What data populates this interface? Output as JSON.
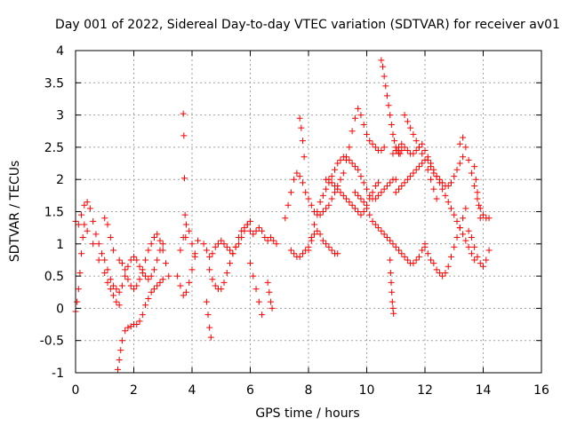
{
  "chart_data": {
    "type": "scatter",
    "title": "Day 001 of 2022, Sidereal Day-to-day VTEC variation (SDTVAR) for receiver av01",
    "xlabel": "GPS time / hours",
    "ylabel": "SDTVAR / TECUs",
    "xlim": [
      0,
      16
    ],
    "ylim": [
      -1,
      4
    ],
    "xticks": [
      0,
      2,
      4,
      6,
      8,
      10,
      12,
      14,
      16
    ],
    "yticks": [
      -1,
      -0.5,
      0,
      0.5,
      1,
      1.5,
      2,
      2.5,
      3,
      3.5,
      4
    ],
    "xtick_labels": [
      "0",
      "2",
      "4",
      "6",
      "8",
      "10",
      "12",
      "14",
      "16"
    ],
    "ytick_labels": [
      "-1",
      "-0.5",
      "0",
      "0.5",
      "1",
      "1.5",
      "2",
      "2.5",
      "3",
      "3.5",
      "4"
    ],
    "grid": true,
    "marker": "+",
    "color": "#ff0000",
    "series": [
      {
        "name": "SDTVAR",
        "tracks": [
          {
            "x": [
              0.0,
              0.1,
              0.2,
              0.3,
              0.4,
              0.5,
              0.6,
              0.7,
              0.8,
              0.9,
              1.0,
              1.1,
              1.2,
              1.3,
              1.4,
              1.5,
              1.6,
              1.7,
              1.8,
              1.9,
              2.0,
              2.1,
              2.2,
              2.3,
              2.4,
              2.5,
              2.6,
              2.7,
              2.8,
              2.9,
              3.0
            ],
            "y": [
              1.35,
              1.3,
              1.45,
              1.6,
              1.65,
              1.55,
              1.35,
              1.15,
              1.0,
              0.85,
              0.75,
              0.6,
              0.45,
              0.35,
              0.3,
              0.25,
              0.35,
              0.5,
              0.65,
              0.75,
              0.8,
              0.75,
              0.65,
              0.55,
              0.5,
              0.45,
              0.5,
              0.6,
              0.75,
              0.9,
              1.0
            ]
          },
          {
            "x": [
              0.0,
              0.05,
              0.1,
              0.15,
              0.2,
              0.25,
              0.3
            ],
            "y": [
              -0.05,
              0.1,
              0.3,
              0.55,
              0.85,
              1.1,
              1.3
            ]
          },
          {
            "x": [
              0.4,
              0.6,
              0.8,
              1.0,
              1.1,
              1.2,
              1.3,
              1.4,
              1.5
            ],
            "y": [
              1.2,
              1.0,
              0.75,
              0.55,
              0.4,
              0.3,
              0.2,
              0.1,
              0.05
            ]
          },
          {
            "x": [
              1.0,
              1.1,
              1.2,
              1.3
            ],
            "y": [
              1.4,
              1.3,
              1.1,
              0.9
            ]
          },
          {
            "x": [
              1.45,
              1.5,
              1.55,
              1.6,
              1.7,
              1.8,
              1.9,
              2.0,
              2.1,
              2.2,
              2.3,
              2.4,
              2.5,
              2.6,
              2.7,
              2.8,
              2.9,
              3.0
            ],
            "y": [
              -0.95,
              -0.8,
              -0.65,
              -0.5,
              -0.35,
              -0.3,
              -0.28,
              -0.25,
              -0.25,
              -0.2,
              -0.1,
              0.05,
              0.15,
              0.25,
              0.3,
              0.35,
              0.4,
              0.45
            ]
          },
          {
            "x": [
              1.5,
              1.6,
              1.7,
              1.8,
              1.9,
              2.0,
              2.1,
              2.2,
              2.3,
              2.4,
              2.5,
              2.6,
              2.7,
              2.8,
              2.9,
              3.0,
              3.1,
              3.2
            ],
            "y": [
              0.75,
              0.7,
              0.6,
              0.45,
              0.35,
              0.3,
              0.35,
              0.45,
              0.6,
              0.75,
              0.9,
              1.0,
              1.1,
              1.15,
              1.05,
              0.9,
              0.7,
              0.5
            ]
          },
          {
            "x": [
              3.5,
              3.6,
              3.7,
              3.8,
              3.9,
              4.0,
              4.1,
              4.2
            ],
            "y": [
              0.5,
              0.35,
              0.2,
              0.25,
              0.4,
              0.6,
              0.85,
              1.05
            ]
          },
          {
            "x": [
              3.7,
              3.72,
              3.74,
              3.76,
              3.78
            ],
            "y": [
              3.02,
              2.68,
              2.02,
              1.45,
              1.1
            ]
          },
          {
            "x": [
              3.6,
              3.7,
              3.8,
              3.9,
              4.0,
              4.1
            ],
            "y": [
              0.9,
              1.1,
              1.3,
              1.2,
              1.0,
              0.8
            ]
          },
          {
            "x": [
              4.4,
              4.5,
              4.6,
              4.7,
              4.8,
              4.9,
              5.0,
              5.1,
              5.2,
              5.3,
              5.4,
              5.5,
              5.6,
              5.7,
              5.8,
              5.9,
              6.0,
              6.1,
              6.2,
              6.3,
              6.4,
              6.5,
              6.6,
              6.7,
              6.8,
              6.9
            ],
            "y": [
              1.0,
              0.9,
              0.8,
              0.85,
              0.95,
              1.0,
              1.05,
              1.0,
              0.95,
              0.9,
              0.85,
              0.95,
              1.1,
              1.2,
              1.25,
              1.3,
              1.2,
              1.15,
              1.2,
              1.25,
              1.2,
              1.1,
              1.05,
              1.1,
              1.05,
              1.0
            ]
          },
          {
            "x": [
              4.5,
              4.55,
              4.6,
              4.65
            ],
            "y": [
              0.1,
              -0.1,
              -0.3,
              -0.45
            ]
          },
          {
            "x": [
              4.6,
              4.7,
              4.8,
              4.9,
              5.0,
              5.1,
              5.2,
              5.3,
              5.4,
              5.5,
              5.6,
              5.7,
              5.8,
              5.9,
              6.0
            ],
            "y": [
              0.6,
              0.45,
              0.35,
              0.3,
              0.3,
              0.4,
              0.55,
              0.7,
              0.85,
              0.95,
              1.0,
              1.1,
              1.2,
              1.3,
              1.35
            ]
          },
          {
            "x": [
              6.0,
              6.1,
              6.2,
              6.3,
              6.4
            ],
            "y": [
              0.7,
              0.5,
              0.3,
              0.1,
              -0.1
            ]
          },
          {
            "x": [
              6.6,
              6.65,
              6.7,
              6.75
            ],
            "y": [
              0.4,
              0.25,
              0.1,
              0.0
            ]
          },
          {
            "x": [
              7.2,
              7.3,
              7.4,
              7.5,
              7.6,
              7.7,
              7.8,
              7.9,
              8.0,
              8.1,
              8.2,
              8.3,
              8.4,
              8.5,
              8.6,
              8.7,
              8.8,
              8.9,
              9.0,
              9.1,
              9.2,
              9.3,
              9.4,
              9.5,
              9.6,
              9.7,
              9.8,
              9.9,
              10.0,
              10.1,
              10.2,
              10.3,
              10.4,
              10.5,
              10.6
            ],
            "y": [
              1.4,
              1.6,
              1.8,
              2.0,
              2.1,
              2.05,
              1.95,
              1.8,
              1.7,
              1.6,
              1.5,
              1.45,
              1.45,
              1.5,
              1.55,
              1.6,
              1.7,
              1.8,
              1.9,
              2.0,
              2.1,
              2.3,
              2.5,
              2.75,
              2.95,
              3.1,
              3.0,
              2.85,
              2.7,
              2.6,
              2.55,
              2.5,
              2.45,
              2.45,
              2.5
            ]
          },
          {
            "x": [
              7.4,
              7.5,
              7.6,
              7.7,
              7.8,
              7.9,
              8.0,
              8.1,
              8.2,
              8.3,
              8.4,
              8.5,
              8.6,
              8.7,
              8.8,
              8.9,
              9.0
            ],
            "y": [
              0.9,
              0.85,
              0.8,
              0.8,
              0.85,
              0.9,
              0.95,
              1.05,
              1.15,
              1.2,
              1.15,
              1.05,
              1.0,
              0.95,
              0.9,
              0.85,
              0.85
            ]
          },
          {
            "x": [
              7.7,
              7.75,
              7.8,
              7.85
            ],
            "y": [
              2.95,
              2.8,
              2.6,
              2.35
            ]
          },
          {
            "x": [
              8.0,
              8.1,
              8.2,
              8.3,
              8.4,
              8.5,
              8.6,
              8.7,
              8.8,
              8.9,
              9.0,
              9.1,
              9.2,
              9.3,
              9.4,
              9.5,
              9.6,
              9.7,
              9.8,
              9.9,
              10.0,
              10.1,
              10.2,
              10.3,
              10.4,
              10.5,
              10.6,
              10.7,
              10.8,
              10.9,
              11.0
            ],
            "y": [
              0.9,
              1.1,
              1.3,
              1.5,
              1.65,
              1.75,
              1.85,
              1.95,
              2.05,
              2.15,
              2.25,
              2.3,
              2.35,
              2.35,
              2.3,
              2.25,
              2.2,
              2.15,
              2.05,
              1.95,
              1.85,
              1.75,
              1.7,
              1.7,
              1.75,
              1.8,
              1.85,
              1.9,
              1.95,
              2.0,
              2.0
            ]
          },
          {
            "x": [
              8.6,
              8.7,
              8.8,
              8.9,
              9.0,
              9.1,
              9.2,
              9.3,
              9.4,
              9.5,
              9.6,
              9.7,
              9.8,
              9.9,
              10.0,
              10.1,
              10.2,
              10.3,
              10.4
            ],
            "y": [
              2.0,
              2.0,
              1.95,
              1.9,
              1.85,
              1.8,
              1.75,
              1.7,
              1.65,
              1.6,
              1.55,
              1.5,
              1.45,
              1.5,
              1.6,
              1.7,
              1.8,
              1.9,
              1.95
            ]
          },
          {
            "x": [
              9.6,
              9.7,
              9.8,
              9.9,
              10.0,
              10.1,
              10.2,
              10.3,
              10.4,
              10.5,
              10.6,
              10.7,
              10.8,
              10.9,
              11.0,
              11.1,
              11.2,
              11.3,
              11.4,
              11.5,
              11.6,
              11.7,
              11.8,
              11.9,
              12.0
            ],
            "y": [
              1.8,
              1.75,
              1.7,
              1.65,
              1.55,
              1.45,
              1.35,
              1.3,
              1.25,
              1.2,
              1.15,
              1.1,
              1.05,
              1.0,
              0.95,
              0.9,
              0.85,
              0.8,
              0.75,
              0.7,
              0.7,
              0.75,
              0.8,
              0.9,
              1.0
            ]
          },
          {
            "x": [
              10.5,
              10.55,
              10.6,
              10.65,
              10.7,
              10.75,
              10.8,
              10.85,
              10.9,
              10.95,
              11.0,
              11.05,
              11.1,
              11.15,
              11.2
            ],
            "y": [
              3.85,
              3.75,
              3.6,
              3.45,
              3.3,
              3.15,
              3.0,
              2.85,
              2.7,
              2.6,
              2.5,
              2.45,
              2.4,
              2.4,
              2.45
            ]
          },
          {
            "x": [
              10.8,
              10.82,
              10.84,
              10.86,
              10.88,
              10.9,
              10.92
            ],
            "y": [
              0.75,
              0.55,
              0.4,
              0.25,
              0.1,
              0.0,
              -0.08
            ]
          },
          {
            "x": [
              10.9,
              11.0,
              11.1,
              11.2,
              11.3,
              11.4,
              11.5,
              11.6,
              11.7,
              11.8,
              11.9,
              12.0,
              12.1,
              12.2,
              12.3,
              12.4,
              12.5,
              12.6,
              12.7,
              12.8,
              12.9,
              13.0,
              13.1,
              13.2,
              13.3
            ],
            "y": [
              2.4,
              2.45,
              2.5,
              2.55,
              2.5,
              2.45,
              2.4,
              2.4,
              2.45,
              2.5,
              2.55,
              2.45,
              2.35,
              2.2,
              2.1,
              2.05,
              2.0,
              1.95,
              1.9,
              1.9,
              1.95,
              2.05,
              2.15,
              2.25,
              2.35
            ]
          },
          {
            "x": [
              11.0,
              11.1,
              11.2,
              11.3,
              11.4,
              11.5,
              11.6,
              11.7,
              11.8,
              11.9,
              12.0,
              12.1,
              12.2,
              12.3,
              12.4,
              12.5,
              12.6,
              12.7,
              12.8,
              12.9,
              13.0,
              13.1,
              13.2,
              13.3,
              13.4,
              13.5,
              13.6,
              13.7
            ],
            "y": [
              1.8,
              1.85,
              1.9,
              1.95,
              2.0,
              2.05,
              2.1,
              2.15,
              2.2,
              2.25,
              2.3,
              2.3,
              2.25,
              2.15,
              2.05,
              1.95,
              1.85,
              1.75,
              1.65,
              1.55,
              1.45,
              1.35,
              1.25,
              1.15,
              1.05,
              0.95,
              0.85,
              0.75
            ]
          },
          {
            "x": [
              11.3,
              11.4,
              11.5,
              11.6,
              11.7,
              11.8,
              11.9,
              12.0,
              12.1,
              12.2,
              12.3,
              12.4
            ],
            "y": [
              3.0,
              2.9,
              2.8,
              2.7,
              2.6,
              2.5,
              2.4,
              2.3,
              2.15,
              2.0,
              1.85,
              1.7
            ]
          },
          {
            "x": [
              12.0,
              12.1,
              12.2,
              12.3,
              12.4,
              12.5,
              12.6,
              12.7,
              12.8,
              12.9,
              13.0,
              13.1,
              13.2,
              13.3,
              13.4
            ],
            "y": [
              0.95,
              0.85,
              0.75,
              0.7,
              0.6,
              0.55,
              0.5,
              0.55,
              0.65,
              0.8,
              0.95,
              1.1,
              1.25,
              1.4,
              1.55
            ]
          },
          {
            "x": [
              13.2,
              13.3,
              13.4,
              13.5,
              13.6,
              13.7,
              13.8,
              13.9,
              14.0,
              14.1,
              14.2
            ],
            "y": [
              2.55,
              2.65,
              2.5,
              2.3,
              2.1,
              1.9,
              1.7,
              1.55,
              1.45,
              1.4,
              1.4
            ]
          },
          {
            "x": [
              13.5,
              13.6,
              13.7,
              13.8,
              13.9,
              14.0,
              14.1,
              14.2
            ],
            "y": [
              1.2,
              1.1,
              0.95,
              0.8,
              0.7,
              0.65,
              0.75,
              0.9
            ]
          },
          {
            "x": [
              13.7,
              13.75,
              13.8,
              13.85,
              13.9
            ],
            "y": [
              2.2,
              2.0,
              1.8,
              1.6,
              1.4
            ]
          }
        ]
      }
    ]
  }
}
